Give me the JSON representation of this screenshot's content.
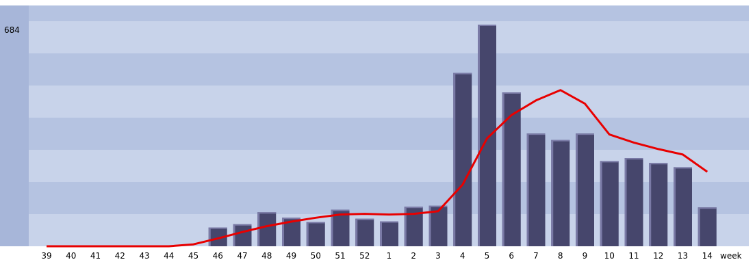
{
  "chart_data": {
    "type": "bar",
    "title": "",
    "xlabel": "week",
    "ylabel": "",
    "ylim": [
      0,
      684
    ],
    "yticks": [
      "684"
    ],
    "grid": true,
    "legend": "none",
    "categories": [
      "39",
      "40",
      "41",
      "42",
      "43",
      "44",
      "45",
      "46",
      "47",
      "48",
      "49",
      "50",
      "51",
      "52",
      "1",
      "2",
      "3",
      "4",
      "5",
      "6",
      "7",
      "8",
      "9",
      "10",
      "11",
      "12",
      "13",
      "14"
    ],
    "series": [
      {
        "type": "bar",
        "values": [
          0,
          0,
          0,
          0,
          0,
          0,
          0,
          58,
          68,
          105,
          88,
          75,
          113,
          85,
          77,
          122,
          125,
          535,
          684,
          475,
          348,
          328,
          348,
          263,
          272,
          257,
          244,
          120
        ]
      },
      {
        "type": "line",
        "values": [
          0,
          0,
          0,
          0,
          0,
          0,
          6,
          24,
          44,
          62,
          76,
          88,
          98,
          100,
          98,
          100,
          108,
          190,
          333,
          405,
          450,
          482,
          440,
          345,
          320,
          300,
          283,
          230
        ]
      }
    ],
    "colors": {
      "bar": "#46466c",
      "bar_highlight": "#7a7aa6",
      "line": "#e80000",
      "band_dark": "#b5c3e1",
      "band_light": "#c8d3ea",
      "axis_panel": "#a7b6d9"
    }
  }
}
